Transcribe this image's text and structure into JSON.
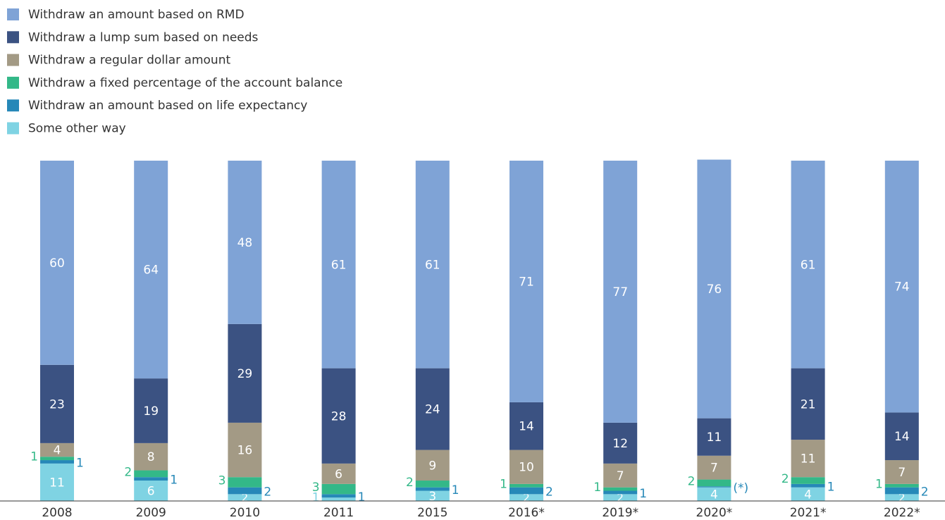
{
  "chart_data": {
    "type": "stacked-bar",
    "categories": [
      "2008",
      "2009",
      "2010",
      "2011",
      "2015",
      "2016*",
      "2019*",
      "2020*",
      "2021*",
      "2022*"
    ],
    "ylim": [
      0,
      100
    ],
    "series": [
      {
        "name": "Withdraw an amount based on RMD",
        "color": "#7fa3d6",
        "values": [
          60,
          64,
          48,
          61,
          61,
          71,
          77,
          76,
          61,
          74
        ]
      },
      {
        "name": "Withdraw a lump sum based on needs",
        "color": "#3b5282",
        "values": [
          23,
          19,
          29,
          28,
          24,
          14,
          12,
          11,
          21,
          14
        ]
      },
      {
        "name": "Withdraw a regular dollar amount",
        "color": "#a39a85",
        "values": [
          4,
          8,
          16,
          6,
          9,
          10,
          7,
          7,
          11,
          7
        ]
      },
      {
        "name": "Withdraw a fixed percentage of the account balance",
        "color": "#33b888",
        "values": [
          1,
          2,
          3,
          3,
          2,
          1,
          1,
          2,
          2,
          1
        ]
      },
      {
        "name": "Withdraw an amount based on life expectancy",
        "color": "#2688b8",
        "values": [
          1,
          1,
          2,
          1,
          1,
          2,
          1,
          0.3,
          1,
          2
        ],
        "value_labels": [
          "1",
          "1",
          "2",
          "1",
          "1",
          "2",
          "1",
          "(*)",
          "1",
          "2"
        ]
      },
      {
        "name": "Some other way",
        "color": "#7fd3e3",
        "values": [
          11,
          6,
          2,
          1,
          3,
          2,
          2,
          4,
          4,
          2
        ]
      }
    ]
  }
}
